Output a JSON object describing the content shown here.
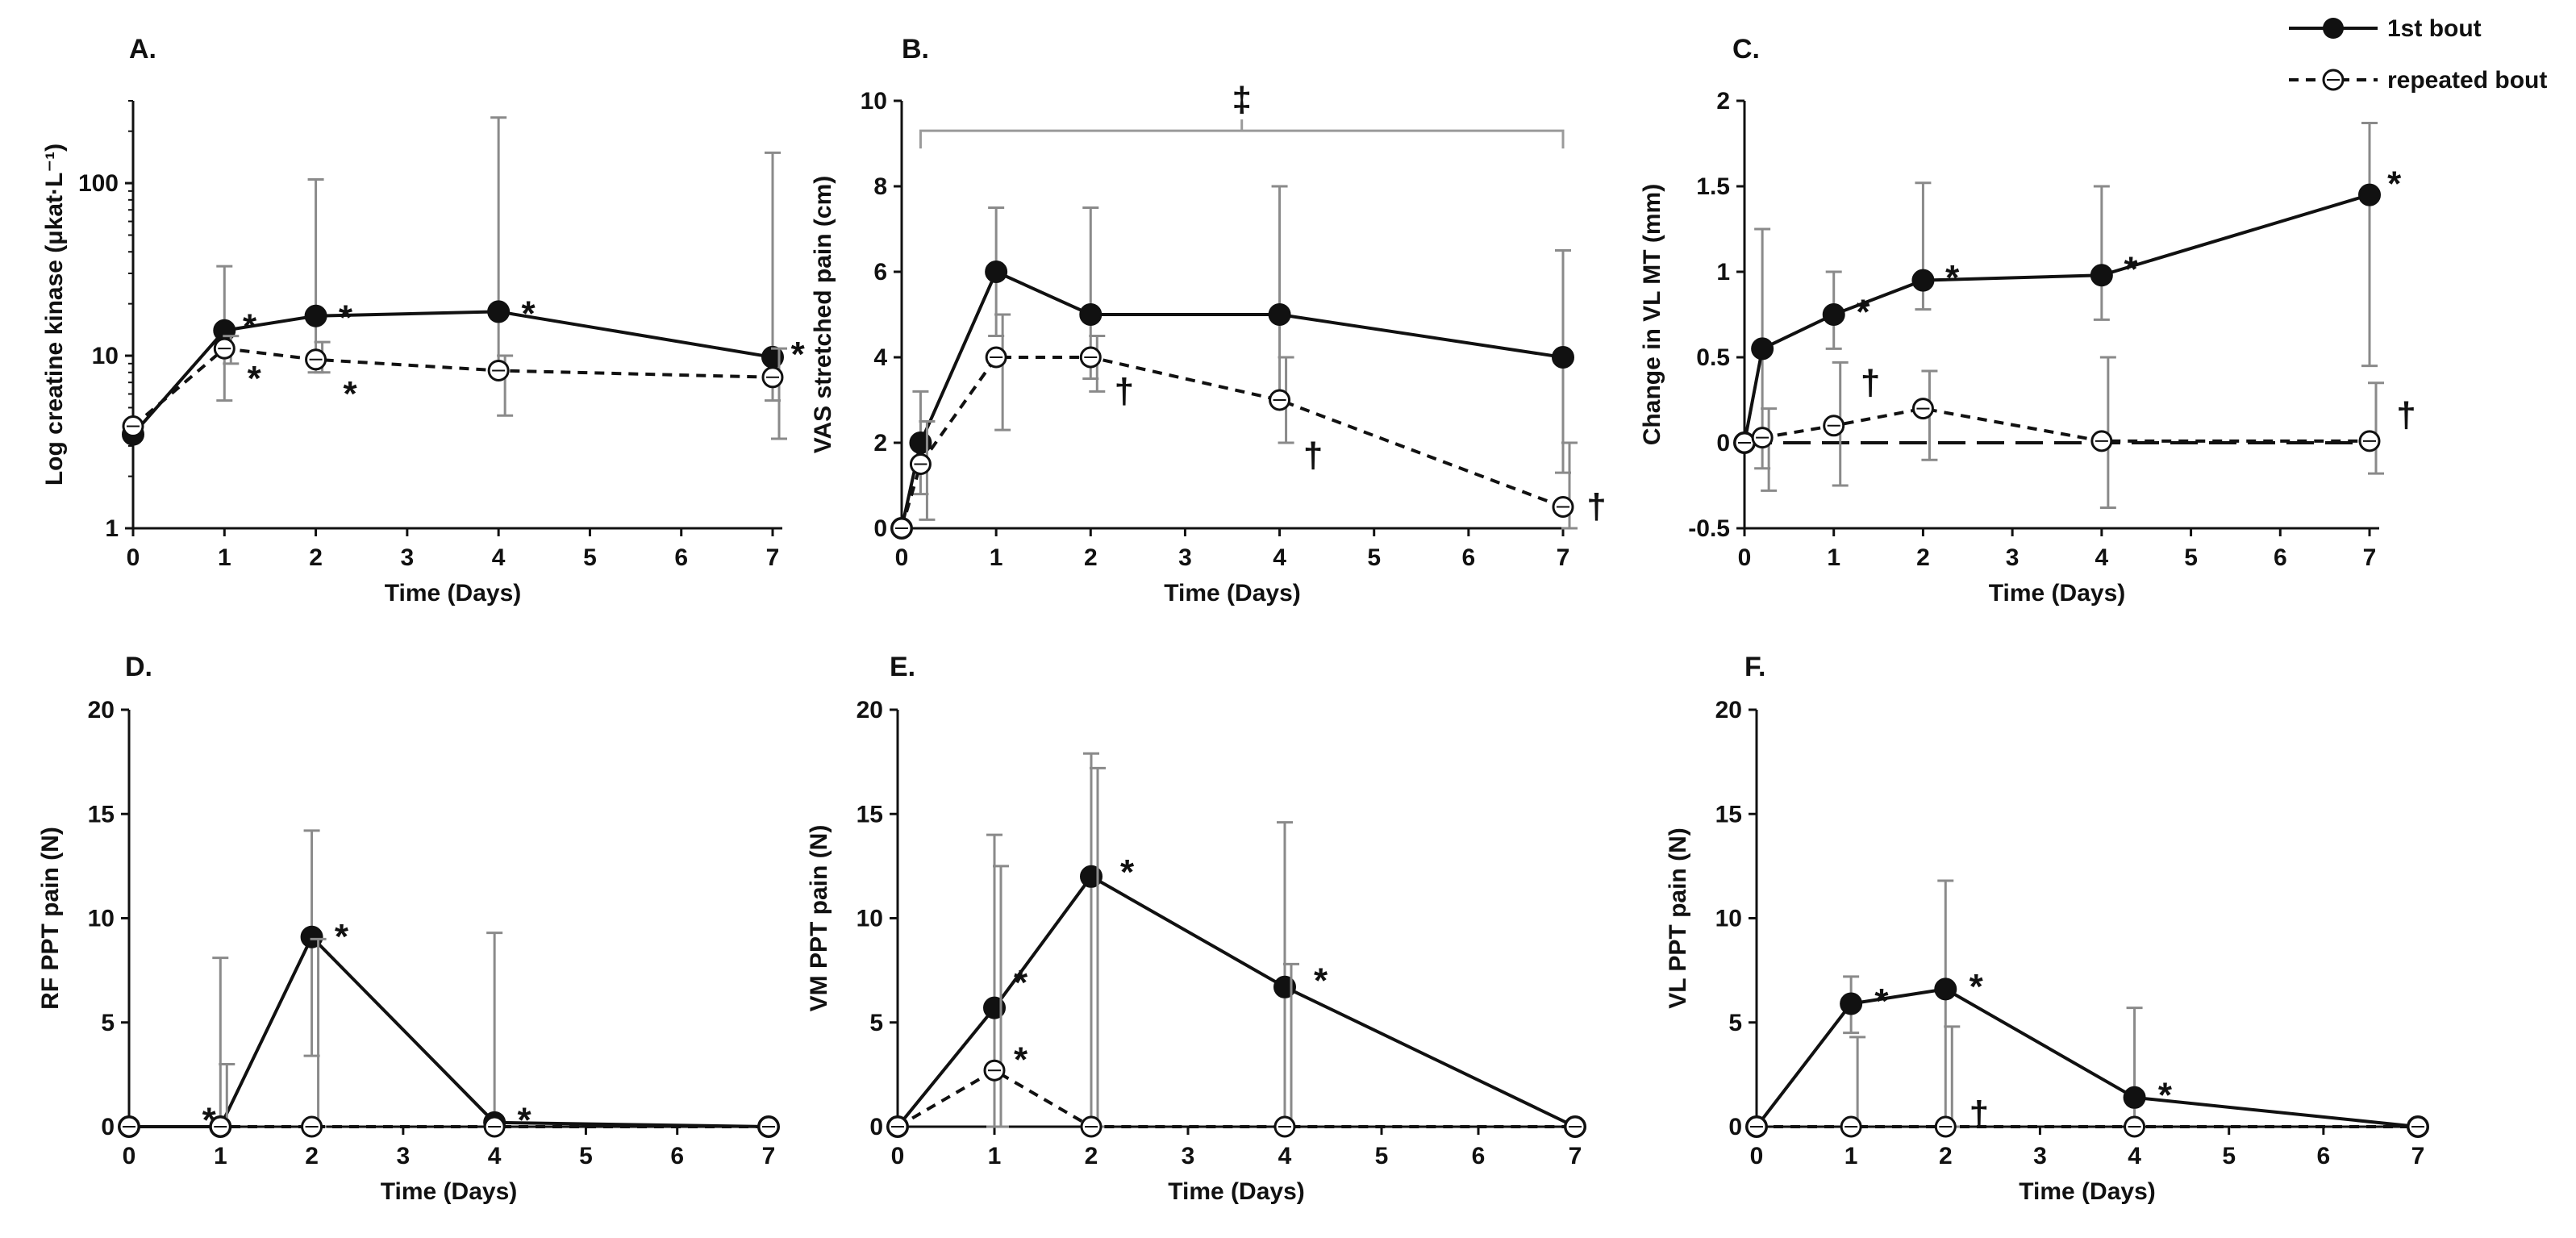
{
  "chart_data": [
    {
      "id": "A",
      "type": "line",
      "title": "A.",
      "xlabel": "Time (Days)",
      "ylabel": "Log creatine kinase (μkat·L⁻¹)",
      "yscale": "log",
      "xlim": [
        0,
        7
      ],
      "ylim": [
        1,
        300
      ],
      "xticks": [
        "0",
        "1",
        "2",
        "3",
        "4",
        "5",
        "6",
        "7"
      ],
      "yticks": [
        {
          "value": 1,
          "label": "1"
        },
        {
          "value": 10,
          "label": "10"
        },
        {
          "value": 100,
          "label": "100"
        }
      ],
      "series": [
        {
          "name": "1st bout",
          "style": "solid-filled",
          "x": [
            0,
            1,
            2,
            4,
            7
          ],
          "y": [
            3.5,
            14,
            17,
            18,
            9.8
          ],
          "err_lo": [
            3.2,
            5.5,
            8,
            8,
            5.5
          ],
          "err_hi": [
            3.8,
            33,
            105,
            240,
            150
          ]
        },
        {
          "name": "repeated bout",
          "style": "dashed-open",
          "x": [
            0,
            1,
            2,
            4,
            7
          ],
          "y": [
            3.9,
            11,
            9.5,
            8.2,
            7.5
          ],
          "err_lo": [
            3.6,
            9,
            8,
            4.5,
            3.3
          ],
          "err_hi": [
            4.2,
            13,
            12,
            10,
            11
          ]
        }
      ],
      "annotations": [
        {
          "text": "*",
          "x": 1.2,
          "y": 16
        },
        {
          "text": "*",
          "x": 1.25,
          "y": 8
        },
        {
          "text": "*",
          "x": 2.25,
          "y": 18
        },
        {
          "text": "*",
          "x": 2.3,
          "y": 6.5
        },
        {
          "text": "*",
          "x": 4.25,
          "y": 19
        },
        {
          "text": "*",
          "x": 7.2,
          "y": 11
        }
      ]
    },
    {
      "id": "B",
      "type": "line",
      "title": "B.",
      "xlabel": "Time (Days)",
      "ylabel": "VAS stretched pain (cm)",
      "yscale": "linear",
      "xlim": [
        0,
        7
      ],
      "ylim": [
        0,
        10
      ],
      "xticks": [
        "0",
        "1",
        "2",
        "3",
        "4",
        "5",
        "6",
        "7"
      ],
      "yticks": [
        {
          "value": 0,
          "label": "0"
        },
        {
          "value": 2,
          "label": "2"
        },
        {
          "value": 4,
          "label": "4"
        },
        {
          "value": 6,
          "label": "6"
        },
        {
          "value": 8,
          "label": "8"
        },
        {
          "value": 10,
          "label": "10"
        }
      ],
      "series": [
        {
          "name": "1st bout",
          "style": "solid-filled",
          "x": [
            0,
            0.2,
            1,
            2,
            4,
            7
          ],
          "y": [
            0,
            2,
            6,
            5,
            5,
            4
          ],
          "err_lo": [
            0,
            0.8,
            4.5,
            3.5,
            3.0,
            1.3
          ],
          "err_hi": [
            0,
            3.2,
            7.5,
            7.5,
            8.0,
            6.5
          ]
        },
        {
          "name": "repeated bout",
          "style": "dashed-open",
          "x": [
            0,
            0.2,
            1,
            2,
            4,
            7
          ],
          "y": [
            0,
            1.5,
            4,
            4,
            3,
            0.5
          ],
          "err_lo": [
            0,
            0.2,
            2.3,
            3.2,
            2.0,
            0
          ],
          "err_hi": [
            0,
            2.5,
            5.0,
            4.5,
            4.0,
            2.0
          ]
        }
      ],
      "bracket": {
        "x1": 0.2,
        "x2": 7,
        "y": 9.3,
        "label": "‡"
      },
      "annotations": [
        {
          "text": "†",
          "x": 2.25,
          "y": 3.2
        },
        {
          "text": "†",
          "x": 4.25,
          "y": 1.7
        },
        {
          "text": "†",
          "x": 7.25,
          "y": 0.5
        }
      ]
    },
    {
      "id": "C",
      "type": "line",
      "title": "C.",
      "xlabel": "Time (Days)",
      "ylabel": "Change in VL MT (mm)",
      "yscale": "linear",
      "xlim": [
        0,
        7
      ],
      "ylim": [
        -0.5,
        2
      ],
      "xticks": [
        "0",
        "1",
        "2",
        "3",
        "4",
        "5",
        "6",
        "7"
      ],
      "yticks": [
        {
          "value": -0.5,
          "label": "-0.5"
        },
        {
          "value": 0,
          "label": "0"
        },
        {
          "value": 0.5,
          "label": "0.5"
        },
        {
          "value": 1,
          "label": "1"
        },
        {
          "value": 1.5,
          "label": "1.5"
        },
        {
          "value": 2,
          "label": "2"
        }
      ],
      "zero_line": true,
      "series": [
        {
          "name": "1st bout",
          "style": "solid-filled",
          "x": [
            0,
            0.2,
            1,
            2,
            4,
            7
          ],
          "y": [
            0,
            0.55,
            0.75,
            0.95,
            0.98,
            1.45
          ],
          "err_lo": [
            0,
            -0.15,
            0.55,
            0.78,
            0.72,
            0.45
          ],
          "err_hi": [
            0,
            1.25,
            1.0,
            1.52,
            1.5,
            1.87
          ]
        },
        {
          "name": "repeated bout",
          "style": "dashed-open",
          "x": [
            0,
            0.2,
            1,
            2,
            4,
            7
          ],
          "y": [
            0,
            0.03,
            0.1,
            0.2,
            0.01,
            0.01
          ],
          "err_lo": [
            0,
            -0.28,
            -0.25,
            -0.1,
            -0.38,
            -0.18
          ],
          "err_hi": [
            0,
            0.2,
            0.47,
            0.42,
            0.5,
            0.35
          ]
        }
      ],
      "annotations": [
        {
          "text": "*",
          "x": 1.25,
          "y": 0.8
        },
        {
          "text": "*",
          "x": 2.25,
          "y": 1.0
        },
        {
          "text": "*",
          "x": 4.25,
          "y": 1.05
        },
        {
          "text": "*",
          "x": 7.2,
          "y": 1.55
        },
        {
          "text": "†",
          "x": 1.3,
          "y": 0.35
        },
        {
          "text": "†",
          "x": 7.3,
          "y": 0.16
        }
      ]
    },
    {
      "id": "D",
      "type": "line",
      "title": "D.",
      "xlabel": "Time (Days)",
      "ylabel": "RF PPT pain (N)",
      "yscale": "linear",
      "xlim": [
        0,
        7
      ],
      "ylim": [
        0,
        20
      ],
      "xticks": [
        "0",
        "1",
        "2",
        "3",
        "4",
        "5",
        "6",
        "7"
      ],
      "yticks": [
        {
          "value": 0,
          "label": "0"
        },
        {
          "value": 5,
          "label": "5"
        },
        {
          "value": 10,
          "label": "10"
        },
        {
          "value": 15,
          "label": "15"
        },
        {
          "value": 20,
          "label": "20"
        }
      ],
      "series": [
        {
          "name": "1st bout",
          "style": "solid-filled",
          "x": [
            0,
            1,
            2,
            4,
            7
          ],
          "y": [
            0,
            0,
            9.1,
            0.2,
            0
          ],
          "err_lo": [
            0,
            0,
            3.4,
            0,
            0
          ],
          "err_hi": [
            0,
            8.1,
            14.2,
            9.3,
            0
          ]
        },
        {
          "name": "repeated bout",
          "style": "dashed-open",
          "x": [
            0,
            1,
            2,
            4,
            7
          ],
          "y": [
            0,
            0,
            0,
            0,
            0
          ],
          "err_lo": [
            0,
            0,
            0,
            0,
            0
          ],
          "err_hi": [
            0,
            3.0,
            9.0,
            0,
            0
          ]
        }
      ],
      "annotations": [
        {
          "text": "*",
          "x": 0.8,
          "y": 0.6
        },
        {
          "text": "*",
          "x": 2.25,
          "y": 9.4
        },
        {
          "text": "*",
          "x": 4.25,
          "y": 0.6
        }
      ]
    },
    {
      "id": "E",
      "type": "line",
      "title": "E.",
      "xlabel": "Time (Days)",
      "ylabel": "VM PPT pain (N)",
      "yscale": "linear",
      "xlim": [
        0,
        7
      ],
      "ylim": [
        0,
        20
      ],
      "xticks": [
        "0",
        "1",
        "2",
        "3",
        "4",
        "5",
        "6",
        "7"
      ],
      "yticks": [
        {
          "value": 0,
          "label": "0"
        },
        {
          "value": 5,
          "label": "5"
        },
        {
          "value": 10,
          "label": "10"
        },
        {
          "value": 15,
          "label": "15"
        },
        {
          "value": 20,
          "label": "20"
        }
      ],
      "series": [
        {
          "name": "1st bout",
          "style": "solid-filled",
          "x": [
            0,
            1,
            2,
            4,
            7
          ],
          "y": [
            0,
            5.7,
            12,
            6.7,
            0
          ],
          "err_lo": [
            0,
            0,
            0,
            0,
            0
          ],
          "err_hi": [
            0,
            14,
            17.9,
            14.6,
            0
          ]
        },
        {
          "name": "repeated bout",
          "style": "dashed-open",
          "x": [
            0,
            1,
            2,
            4,
            7
          ],
          "y": [
            0,
            2.7,
            0,
            0,
            0
          ],
          "err_lo": [
            0,
            0,
            0,
            0,
            0
          ],
          "err_hi": [
            0,
            12.5,
            17.2,
            7.8,
            0
          ]
        }
      ],
      "annotations": [
        {
          "text": "*",
          "x": 1.2,
          "y": 7.2
        },
        {
          "text": "*",
          "x": 1.2,
          "y": 3.5
        },
        {
          "text": "*",
          "x": 2.3,
          "y": 12.5
        },
        {
          "text": "*",
          "x": 4.3,
          "y": 7.3
        }
      ]
    },
    {
      "id": "F",
      "type": "line",
      "title": "F.",
      "xlabel": "Time (Days)",
      "ylabel": "VL PPT pain (N)",
      "yscale": "linear",
      "xlim": [
        0,
        7
      ],
      "ylim": [
        0,
        20
      ],
      "xticks": [
        "0",
        "1",
        "2",
        "3",
        "4",
        "5",
        "6",
        "7"
      ],
      "yticks": [
        {
          "value": 0,
          "label": "0"
        },
        {
          "value": 5,
          "label": "5"
        },
        {
          "value": 10,
          "label": "10"
        },
        {
          "value": 15,
          "label": "15"
        },
        {
          "value": 20,
          "label": "20"
        }
      ],
      "series": [
        {
          "name": "1st bout",
          "style": "solid-filled",
          "x": [
            0,
            1,
            2,
            4,
            7
          ],
          "y": [
            0,
            5.9,
            6.6,
            1.4,
            0
          ],
          "err_lo": [
            0,
            4.5,
            0,
            0,
            0
          ],
          "err_hi": [
            0,
            7.2,
            11.8,
            5.7,
            0
          ]
        },
        {
          "name": "repeated bout",
          "style": "dashed-open",
          "x": [
            0,
            1,
            2,
            4,
            7
          ],
          "y": [
            0,
            0,
            0,
            0,
            0
          ],
          "err_lo": [
            0,
            0,
            0,
            0,
            0
          ],
          "err_hi": [
            0,
            4.3,
            4.8,
            0,
            0
          ]
        }
      ],
      "annotations": [
        {
          "text": "*",
          "x": 1.25,
          "y": 6.3
        },
        {
          "text": "*",
          "x": 2.25,
          "y": 7.0
        },
        {
          "text": "*",
          "x": 4.25,
          "y": 1.8
        },
        {
          "text": "†",
          "x": 2.25,
          "y": 0.6
        }
      ]
    }
  ],
  "legend": {
    "items": [
      {
        "label": "1st bout",
        "style": "solid-filled"
      },
      {
        "label": "repeated bout",
        "style": "dashed-open"
      }
    ]
  }
}
